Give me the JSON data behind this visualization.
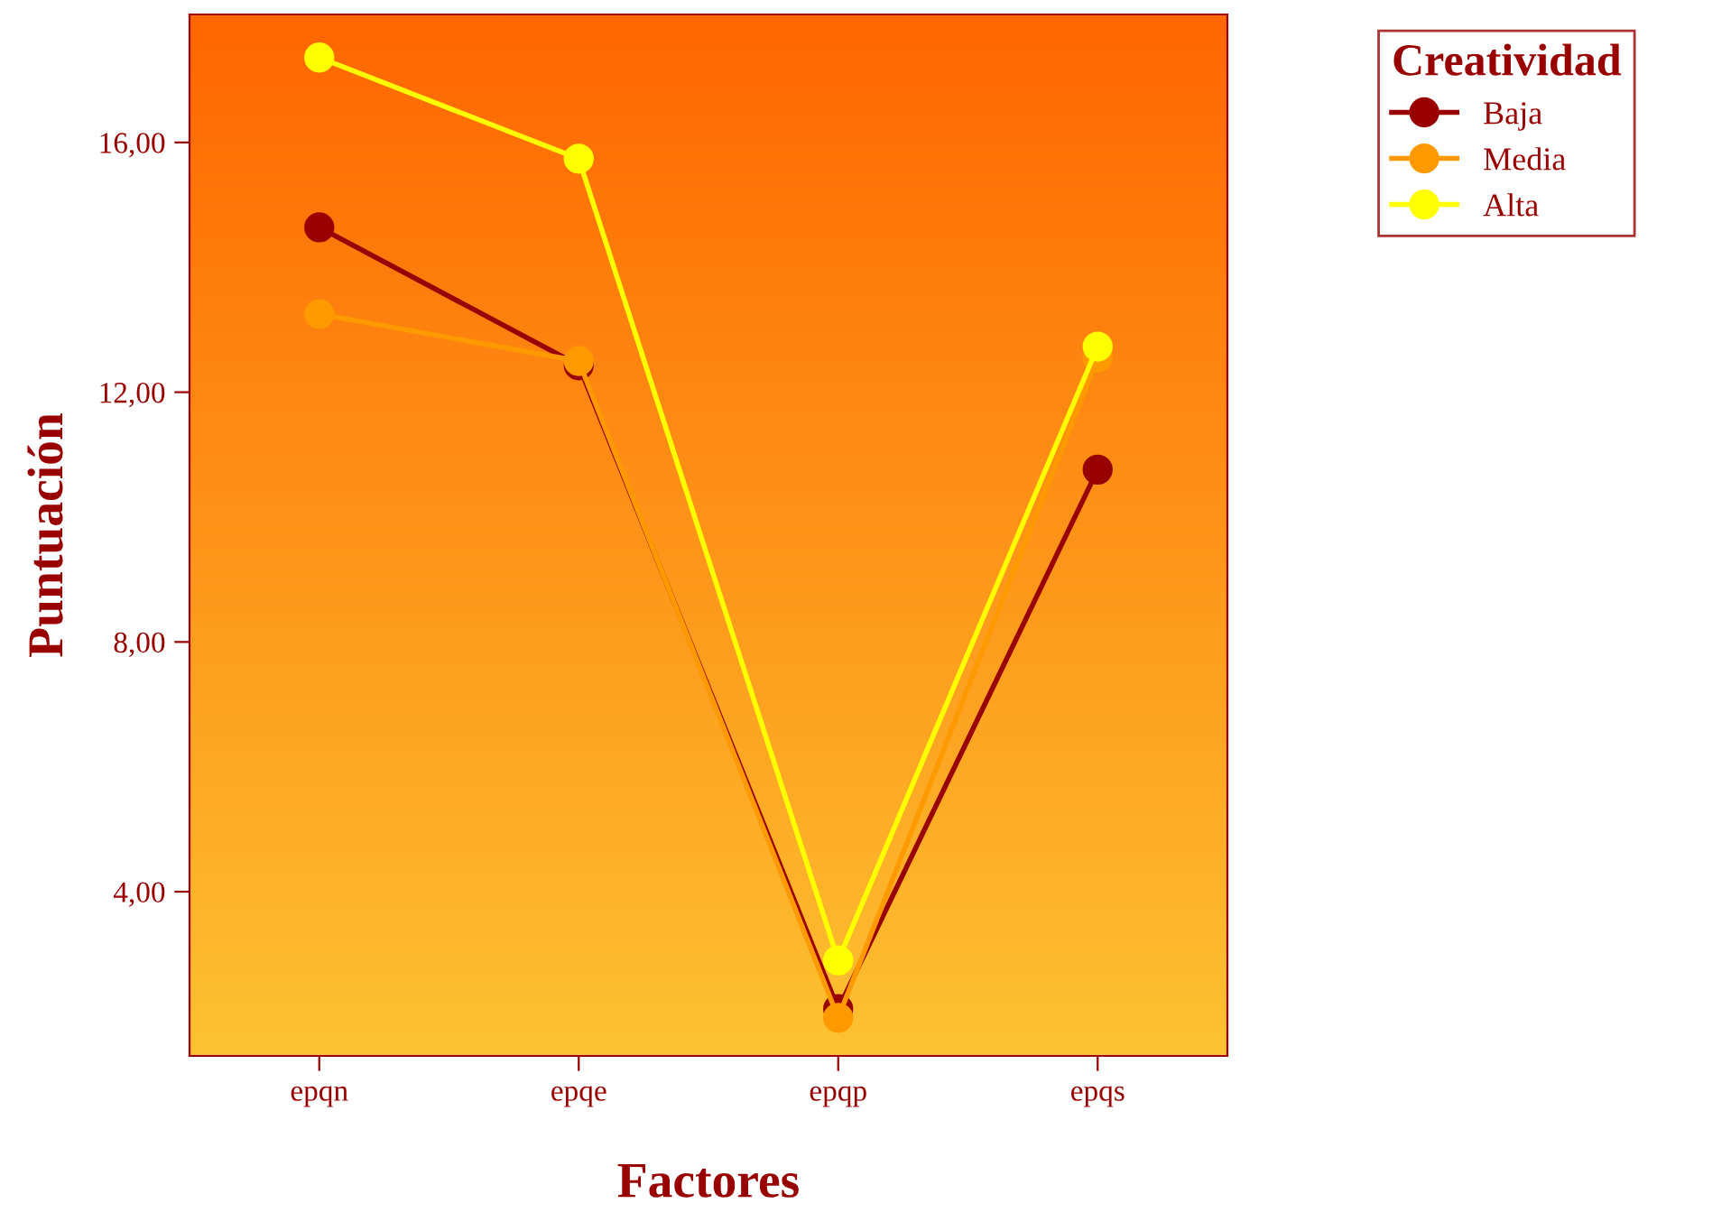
{
  "chart_data": {
    "type": "line",
    "xlabel": "Factores",
    "ylabel": "Puntuación",
    "legend_title": "Creatividad",
    "categories": [
      "epqn",
      "epqe",
      "epqp",
      "epqs"
    ],
    "series": [
      {
        "name": "Baja",
        "color": "#990000",
        "values": [
          14.64,
          12.43,
          2.12,
          10.76
        ]
      },
      {
        "name": "Media",
        "color": "#ff9900",
        "values": [
          13.25,
          12.5,
          1.98,
          12.55
        ]
      },
      {
        "name": "Alta",
        "color": "#ffff00",
        "values": [
          17.36,
          15.74,
          2.9,
          12.73
        ]
      }
    ],
    "ylim": [
      1.37,
      18.05
    ],
    "yticks": [
      {
        "value": 4,
        "label": "4,00"
      },
      {
        "value": 8,
        "label": "8,00"
      },
      {
        "value": 12,
        "label": "12,00"
      },
      {
        "value": 16,
        "label": "16,00"
      }
    ],
    "marker": "circle",
    "line_style": "solid",
    "grid": false,
    "legend": "top right"
  }
}
